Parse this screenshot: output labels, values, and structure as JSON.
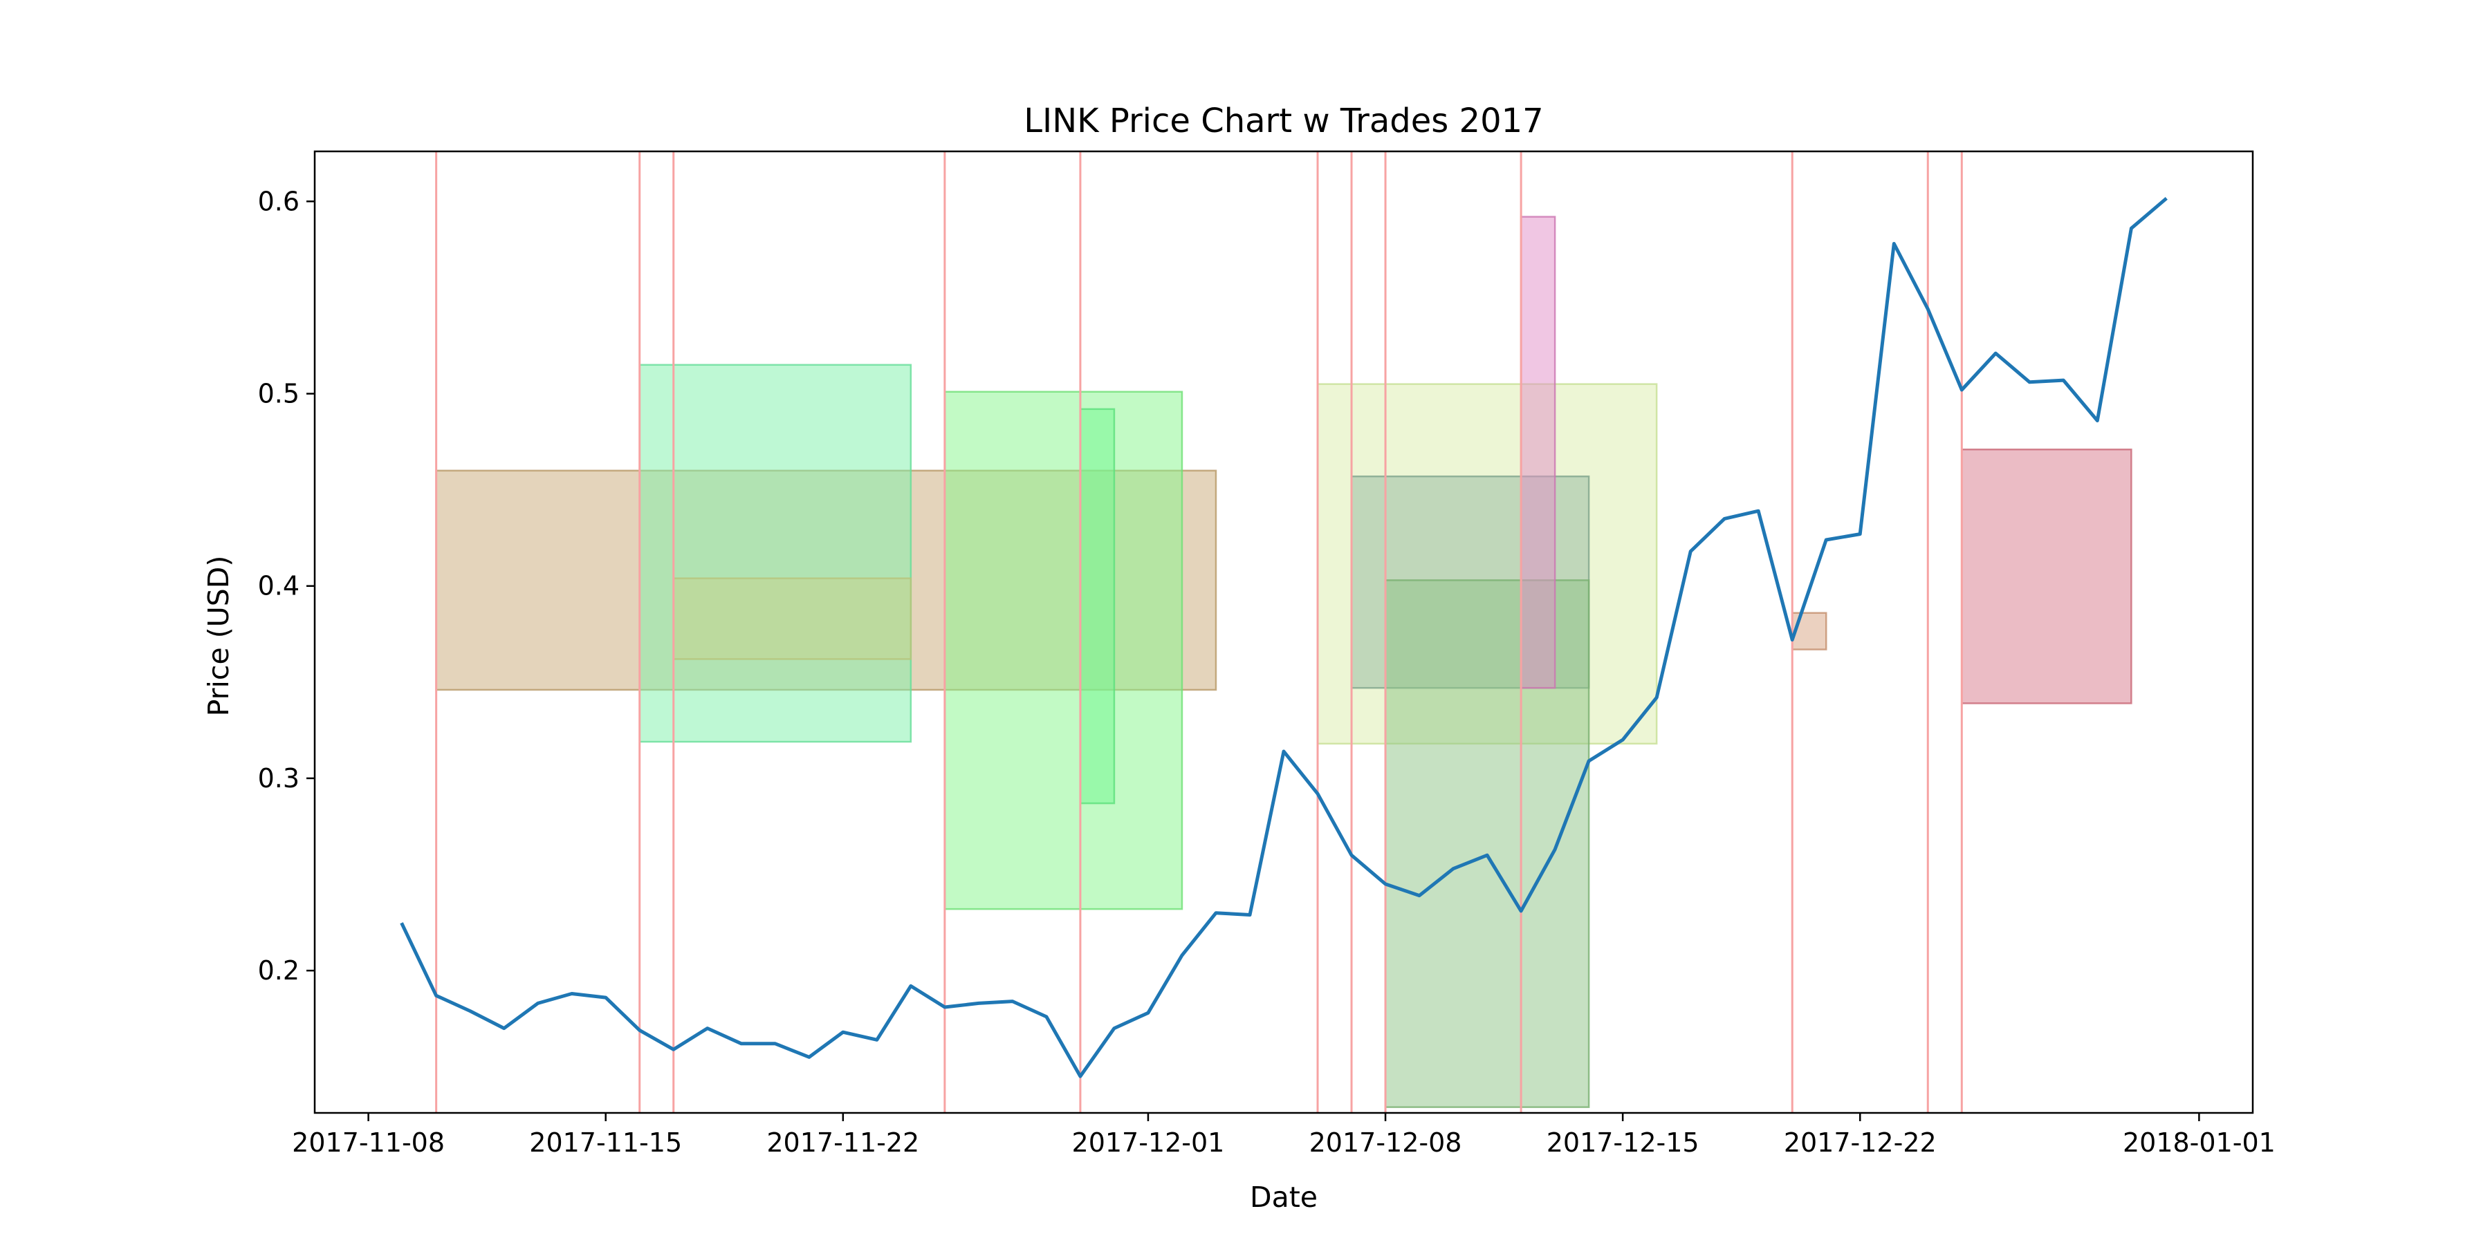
{
  "chart_data": {
    "type": "line",
    "title": "LINK Price Chart w Trades 2017",
    "xlabel": "Date",
    "ylabel": "Price (USD)",
    "xlim": [
      "2017-11-06T10:00",
      "2018-01-02T14:00"
    ],
    "ylim": [
      0.126,
      0.626
    ],
    "x_ticks": [
      "2017-11-08",
      "2017-11-15",
      "2017-11-22",
      "2017-12-01",
      "2017-12-08",
      "2017-12-15",
      "2017-12-22",
      "2018-01-01"
    ],
    "y_ticks": [
      0.2,
      0.3,
      0.4,
      0.5,
      0.6
    ],
    "grid": false,
    "series": [
      {
        "color": "#1f77b4",
        "x": [
          "2017-11-09",
          "2017-11-10",
          "2017-11-11",
          "2017-11-12",
          "2017-11-13",
          "2017-11-14",
          "2017-11-15",
          "2017-11-16",
          "2017-11-17",
          "2017-11-18",
          "2017-11-19",
          "2017-11-20",
          "2017-11-21",
          "2017-11-22",
          "2017-11-23",
          "2017-11-24",
          "2017-11-25",
          "2017-11-26",
          "2017-11-27",
          "2017-11-28",
          "2017-11-29",
          "2017-11-30",
          "2017-12-01",
          "2017-12-02",
          "2017-12-03",
          "2017-12-04",
          "2017-12-05",
          "2017-12-06",
          "2017-12-07",
          "2017-12-08",
          "2017-12-09",
          "2017-12-10",
          "2017-12-11",
          "2017-12-12",
          "2017-12-13",
          "2017-12-14",
          "2017-12-15",
          "2017-12-16",
          "2017-12-17",
          "2017-12-18",
          "2017-12-19",
          "2017-12-20",
          "2017-12-21",
          "2017-12-22",
          "2017-12-23",
          "2017-12-24",
          "2017-12-25",
          "2017-12-26",
          "2017-12-27",
          "2017-12-28",
          "2017-12-29",
          "2017-12-30",
          "2017-12-31"
        ],
        "y": [
          0.224,
          0.187,
          0.179,
          0.17,
          0.183,
          0.188,
          0.186,
          0.169,
          0.159,
          0.17,
          0.162,
          0.162,
          0.155,
          0.168,
          0.164,
          0.192,
          0.181,
          0.183,
          0.184,
          0.176,
          0.145,
          0.17,
          0.178,
          0.208,
          0.23,
          0.229,
          0.314,
          0.292,
          0.26,
          0.245,
          0.239,
          0.253,
          0.26,
          0.231,
          0.263,
          0.309,
          0.32,
          0.342,
          0.418,
          0.435,
          0.439,
          0.372,
          0.424,
          0.427,
          0.578,
          0.544,
          0.502,
          0.521,
          0.506,
          0.507,
          0.486,
          0.586,
          0.601
        ]
      }
    ],
    "trade_lines": {
      "color": "#f7a3a3",
      "dates": [
        "2017-11-10",
        "2017-11-16",
        "2017-11-17",
        "2017-11-25",
        "2017-11-29",
        "2017-12-06",
        "2017-12-07",
        "2017-12-08",
        "2017-12-12",
        "2017-12-20",
        "2017-12-24",
        "2017-12-25"
      ]
    },
    "trade_boxes": [
      {
        "x0": "2017-11-10",
        "x1": "2017-12-03",
        "y0": 0.346,
        "y1": 0.46,
        "fill": "#c9aa77",
        "stroke": "#b89968"
      },
      {
        "x0": "2017-11-16",
        "x1": "2017-11-24",
        "y0": 0.319,
        "y1": 0.515,
        "fill": "#7df1aa",
        "stroke": "#66dd99"
      },
      {
        "x0": "2017-11-17",
        "x1": "2017-11-24",
        "y0": 0.362,
        "y1": 0.404,
        "fill": "#c8d28a",
        "stroke": "#b7c47a"
      },
      {
        "x0": "2017-11-25",
        "x1": "2017-12-02",
        "y0": 0.232,
        "y1": 0.501,
        "fill": "#86f58b",
        "stroke": "#6fe076"
      },
      {
        "x0": "2017-11-29",
        "x1": "2017-11-30",
        "y0": 0.287,
        "y1": 0.492,
        "fill": "#6ff790",
        "stroke": "#5ce07c"
      },
      {
        "x0": "2017-12-06",
        "x1": "2017-12-16",
        "y0": 0.318,
        "y1": 0.505,
        "fill": "#dbedab",
        "stroke": "#c7e095"
      },
      {
        "x0": "2017-12-07",
        "x1": "2017-12-14",
        "y0": 0.347,
        "y1": 0.457,
        "fill": "#93b7a0",
        "stroke": "#7fa58c"
      },
      {
        "x0": "2017-12-08",
        "x1": "2017-12-14",
        "y0": 0.129,
        "y1": 0.403,
        "fill": "#8ec486",
        "stroke": "#79b071"
      },
      {
        "x0": "2017-12-12",
        "x1": "2017-12-13",
        "y0": 0.347,
        "y1": 0.592,
        "fill": "#e18dc8",
        "stroke": "#cc76b2"
      },
      {
        "x0": "2017-12-20",
        "x1": "2017-12-21",
        "y0": 0.367,
        "y1": 0.386,
        "fill": "#d8a381",
        "stroke": "#c48f6d"
      },
      {
        "x0": "2017-12-25",
        "x1": "2017-12-30",
        "y0": 0.339,
        "y1": 0.471,
        "fill": "#d87a8b",
        "stroke": "#c96676"
      }
    ]
  }
}
